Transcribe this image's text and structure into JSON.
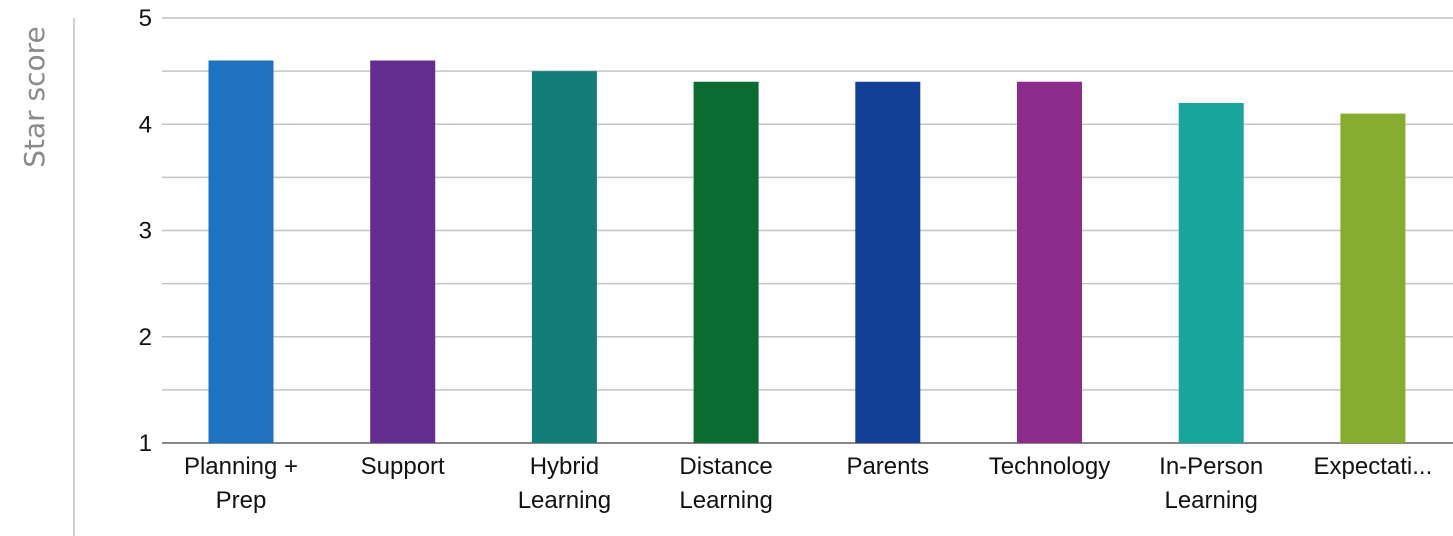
{
  "chart_data": {
    "type": "bar",
    "ylabel": "Star score",
    "xlabel": "",
    "ylim": [
      1,
      5
    ],
    "yticks": [
      1,
      2,
      3,
      4,
      5
    ],
    "grid": true,
    "minor_gridlines": [
      1.5,
      2.5,
      3.5,
      4.5
    ],
    "categories": [
      [
        "Planning +",
        "Prep"
      ],
      [
        "Support"
      ],
      [
        "Hybrid",
        "Learning"
      ],
      [
        "Distance",
        "Learning"
      ],
      [
        "Parents"
      ],
      [
        "Technology"
      ],
      [
        "In-Person",
        "Learning"
      ],
      [
        "Expectati..."
      ]
    ],
    "values": [
      4.6,
      4.6,
      4.5,
      4.4,
      4.4,
      4.4,
      4.2,
      4.1
    ],
    "colors": [
      "#1f72bd",
      "#652c8f",
      "#137e77",
      "#0c6b30",
      "#123f95",
      "#8d2c8c",
      "#18a59b",
      "#86ad2f"
    ],
    "grid_color": "#c4c4c4",
    "axis_color": "#9a9a9a"
  }
}
